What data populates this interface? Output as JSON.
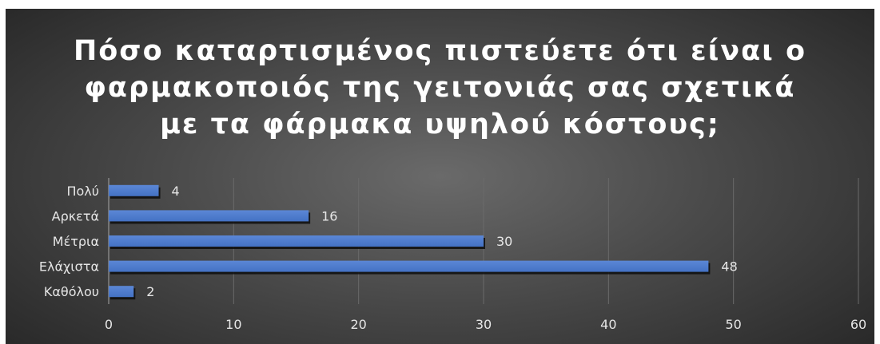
{
  "chart_data": {
    "type": "bar",
    "orientation": "horizontal",
    "title_lines": [
      "Πόσο καταρτισμένος πιστεύετε ότι είναι ο",
      "φαρμακοποιός της γειτονιάς σας σχετικά",
      "με τα φάρμακα υψηλού κόστους;"
    ],
    "categories": [
      "Πολύ",
      "Αρκετά",
      "Μέτρια",
      "Ελάχιστα",
      "Καθόλου"
    ],
    "values": [
      4,
      16,
      30,
      48,
      2
    ],
    "xlim": [
      0,
      60
    ],
    "x_ticks": [
      0,
      10,
      20,
      30,
      40,
      50,
      60
    ],
    "xlabel": "",
    "ylabel": "",
    "grid": true,
    "legend": "none",
    "colors": {
      "bar": "#4472c4",
      "bar_top": "#5b87d6",
      "bar_shadow": "#0d0d0d",
      "background": "#404040",
      "gridline": "#6a6a6a",
      "text": "#e6e6e6"
    }
  }
}
